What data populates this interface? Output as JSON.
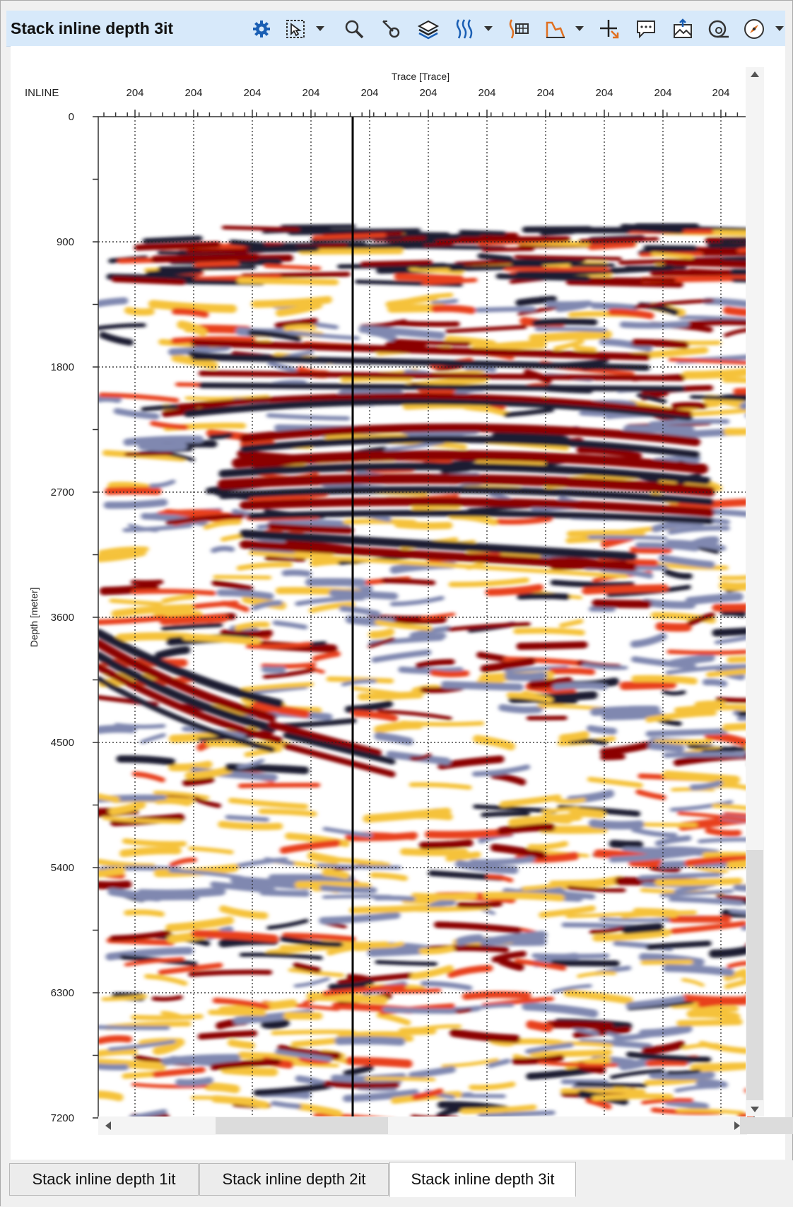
{
  "window": {
    "title": "Stack inline depth 3it"
  },
  "toolbar": {
    "items": [
      {
        "name": "settings-gear-icon",
        "color": "#1a5fb4"
      },
      {
        "name": "select-cursor-icon"
      },
      {
        "name": "zoom-magnifier-icon"
      },
      {
        "name": "pick-tool-icon"
      },
      {
        "name": "layers-icon"
      },
      {
        "name": "wiggle-display-icon",
        "color": "#1a5fb4"
      },
      {
        "name": "trace-header-icon",
        "color": "#e07020"
      },
      {
        "name": "histogram-icon",
        "color": "#e07020"
      },
      {
        "name": "crosshair-icon",
        "color": "#e07020"
      },
      {
        "name": "comment-icon"
      },
      {
        "name": "export-image-icon"
      },
      {
        "name": "overview-map-icon"
      },
      {
        "name": "compass-navigation-icon"
      }
    ]
  },
  "plot": {
    "top_axis_title": "Trace [Trace]",
    "row_label": "INLINE",
    "x_tick_labels": [
      "204",
      "204",
      "204",
      "204",
      "204",
      "204",
      "204",
      "204",
      "204",
      "204",
      "204"
    ],
    "y_axis_title": "Depth [meter]",
    "y_tick_labels": [
      "0",
      "900",
      "1800",
      "2700",
      "3600",
      "4500",
      "5400",
      "6300",
      "7200"
    ],
    "depth_range_m": [
      0,
      7200
    ],
    "colormap": [
      "#1a1a33",
      "#8088b0",
      "#ffffff",
      "#f5c23a",
      "#e8401a",
      "#8b0000"
    ]
  },
  "tabs": [
    {
      "label": "Stack inline depth 1it",
      "active": false
    },
    {
      "label": "Stack inline depth 2it",
      "active": false
    },
    {
      "label": "Stack inline depth 3it",
      "active": true
    }
  ]
}
